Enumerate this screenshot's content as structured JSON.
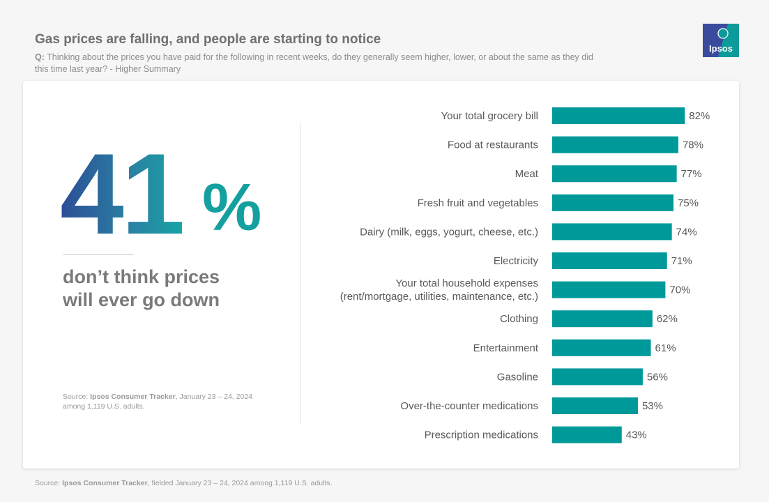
{
  "header": {
    "title": "Gas prices are falling, and people are starting to notice",
    "question_prefix": "Q:",
    "question": "Thinking about the prices you have paid for the following in recent weeks, do they generally seem higher, lower, or about the same as they did this time last year? - Higher Summary"
  },
  "logo": {
    "text": "Ipsos",
    "icon": "ipsos-logo-icon",
    "color": "#0d9a9a",
    "bg": "#3a4a9c"
  },
  "highlight": {
    "number": "41",
    "percent": "%",
    "tagline_line1": "don’t think prices",
    "tagline_line2": "will ever go down"
  },
  "card_source": {
    "prefix": "Source:",
    "brand": "Ipsos Consumer Tracker",
    "rest": ", January 23 – 24, 2024",
    "line2": "among 1,119 U.S. adults."
  },
  "footer_source": {
    "prefix": "Source:",
    "brand": "Ipsos Consumer Tracker",
    "rest": ", fielded January 23 – 24, 2024 among 1,119 U.S. adults."
  },
  "colors": {
    "bar": "#009999",
    "text": "#595959"
  },
  "chart_data": {
    "type": "bar",
    "orientation": "horizontal",
    "categories": [
      [
        "Your total grocery bill"
      ],
      [
        "Food at restaurants"
      ],
      [
        "Meat"
      ],
      [
        "Fresh fruit and vegetables"
      ],
      [
        "Dairy (milk, eggs, yogurt, cheese, etc.)"
      ],
      [
        "Electricity"
      ],
      [
        "Your total household expenses",
        "(rent/mortgage, utilities, maintenance, etc.)"
      ],
      [
        "Clothing"
      ],
      [
        "Entertainment"
      ],
      [
        "Gasoline"
      ],
      [
        "Over-the-counter medications"
      ],
      [
        "Prescription medications"
      ]
    ],
    "values": [
      82,
      78,
      77,
      75,
      74,
      71,
      70,
      62,
      61,
      56,
      53,
      43
    ],
    "value_labels": [
      "82%",
      "78%",
      "77%",
      "75%",
      "74%",
      "71%",
      "70%",
      "62%",
      "61%",
      "56%",
      "53%",
      "43%"
    ],
    "value_suffix": "%",
    "xlim": [
      0,
      100
    ],
    "grid": false,
    "legend": "none"
  }
}
